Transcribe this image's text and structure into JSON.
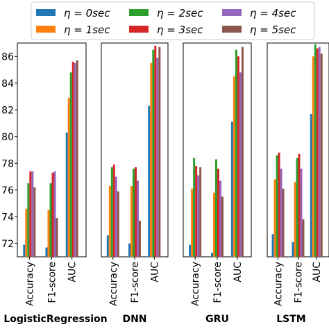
{
  "chart_data": {
    "type": "bar",
    "legend": {
      "placement": "top-center",
      "entries": [
        {
          "label": "η = 0sec",
          "color": "#1f77b4"
        },
        {
          "label": "η = 1sec",
          "color": "#ff7f0e"
        },
        {
          "label": "η = 2sec",
          "color": "#2ca02c"
        },
        {
          "label": "η = 3sec",
          "color": "#d62728"
        },
        {
          "label": "η = 4sec",
          "color": "#9467bd"
        },
        {
          "label": "η = 5sec",
          "color": "#8c564b"
        }
      ]
    },
    "y_tick_labels": [
      "72",
      "74",
      "76",
      "78",
      "80",
      "82",
      "84",
      "86"
    ],
    "ylim": [
      71.0,
      87.0
    ],
    "grid": false,
    "categories": [
      "Accuracy",
      "F1-score",
      "AUC"
    ],
    "panels": [
      {
        "title": "LogisticRegression",
        "series": [
          {
            "values": [
              71.9,
              71.7,
              80.3
            ]
          },
          {
            "values": [
              74.6,
              74.5,
              82.9
            ]
          },
          {
            "values": [
              76.5,
              76.5,
              84.8
            ]
          },
          {
            "values": [
              77.4,
              77.3,
              85.6
            ]
          },
          {
            "values": [
              77.4,
              77.4,
              85.5
            ]
          },
          {
            "values": [
              76.2,
              73.9,
              85.7
            ]
          }
        ]
      },
      {
        "title": "DNN",
        "series": [
          {
            "values": [
              72.6,
              72.0,
              82.3
            ]
          },
          {
            "values": [
              76.3,
              76.3,
              85.5
            ]
          },
          {
            "values": [
              77.7,
              77.6,
              86.5
            ]
          },
          {
            "values": [
              77.9,
              77.7,
              86.8
            ]
          },
          {
            "values": [
              77.0,
              76.7,
              85.9
            ]
          },
          {
            "values": [
              75.9,
              73.7,
              86.7
            ]
          }
        ]
      },
      {
        "title": "GRU",
        "series": [
          {
            "values": [
              71.9,
              71.3,
              81.1
            ]
          },
          {
            "values": [
              76.1,
              75.8,
              84.5
            ]
          },
          {
            "values": [
              78.4,
              78.3,
              86.5
            ]
          },
          {
            "values": [
              77.8,
              77.6,
              86.0
            ]
          },
          {
            "values": [
              77.1,
              76.7,
              84.8
            ]
          },
          {
            "values": [
              77.7,
              75.5,
              86.7
            ]
          }
        ]
      },
      {
        "title": "LSTM",
        "series": [
          {
            "values": [
              72.7,
              72.1,
              81.7
            ]
          },
          {
            "values": [
              76.8,
              76.6,
              86.0
            ]
          },
          {
            "values": [
              78.6,
              78.4,
              86.9
            ]
          },
          {
            "values": [
              78.8,
              78.7,
              86.6
            ]
          },
          {
            "values": [
              77.6,
              77.6,
              86.7
            ]
          },
          {
            "values": [
              76.1,
              73.8,
              86.2
            ]
          }
        ]
      }
    ]
  }
}
